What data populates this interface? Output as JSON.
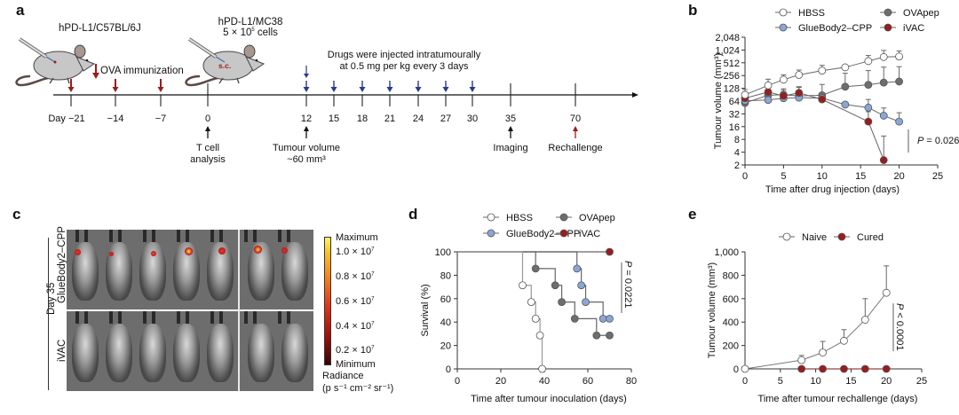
{
  "panel_labels": {
    "a": "a",
    "b": "b",
    "c": "c",
    "d": "d",
    "e": "e"
  },
  "panel_a": {
    "mouse1_label": "hPD-L1/C57BL/6J",
    "mouse2_label_line1": "hPD-L1/MC38",
    "mouse2_label_line2": "5 × 10",
    "mouse2_label_sup": "5",
    "mouse2_label_line2_tail": " cells",
    "sc_label": "s.c.",
    "ova_label": "OVA immunization",
    "drug_note_line1": "Drugs were injected intratumourally",
    "drug_note_line2": "at 0.5 mg per kg every 3 days",
    "ticks": [
      {
        "day": -21,
        "label": "Day −21",
        "arrow": "red-down"
      },
      {
        "day": -14,
        "label": "−14",
        "arrow": "red-down"
      },
      {
        "day": -7,
        "label": "−7",
        "arrow": "red-down"
      },
      {
        "day": 0,
        "label": "0",
        "arrow": "none"
      },
      {
        "day": 12,
        "label": "12",
        "arrow": "blue-down"
      },
      {
        "day": 15,
        "label": "15",
        "arrow": "blue-down"
      },
      {
        "day": 18,
        "label": "18",
        "arrow": "blue-down"
      },
      {
        "day": 21,
        "label": "21",
        "arrow": "blue-down"
      },
      {
        "day": 24,
        "label": "24",
        "arrow": "blue-down"
      },
      {
        "day": 27,
        "label": "27",
        "arrow": "blue-down"
      },
      {
        "day": 30,
        "label": "30",
        "arrow": "blue-down"
      },
      {
        "day": 35,
        "label": "35",
        "arrow": "none"
      },
      {
        "day": 70,
        "label": "70",
        "arrow": "none"
      }
    ],
    "below_annotations": [
      {
        "day": 0,
        "line1": "T cell",
        "line2": "analysis",
        "color": "#111111"
      },
      {
        "day": 12,
        "line1": "Tumour volume",
        "line2": "~60 mm³",
        "color": "#111111"
      },
      {
        "day": 35,
        "line1": "Imaging",
        "line2": "",
        "color": "#111111"
      },
      {
        "day": 70,
        "line1": "Rechallenge",
        "line2": "",
        "color": "#9b1c1c"
      }
    ],
    "colors": {
      "red_arrow": "#9b1c1c",
      "blue_arrow": "#2a3a8c"
    }
  },
  "panel_c": {
    "day_label": "Day 35",
    "row_labels": [
      "GlueBody2–CPP",
      "iVAC"
    ],
    "colorbar": {
      "max_label": "Maximum",
      "min_label": "Minimum",
      "ticks": [
        "1.0 × 10",
        "0.8 × 10",
        "0.6 × 10",
        "0.4 × 10",
        "0.2 × 10"
      ],
      "tick_exp": "7",
      "unit_line1": "Radiance",
      "unit_line2": "(p s⁻¹ cm⁻² sr⁻¹)"
    }
  },
  "chart_data": [
    {
      "id": "b",
      "type": "line",
      "title": "",
      "xlabel": "Time after drug injection (days)",
      "ylabel": "Tumour volume (mm³)",
      "yscale": "log2",
      "xlim": [
        0,
        25
      ],
      "ylim": [
        2,
        2048
      ],
      "xticks": [
        0,
        5,
        10,
        15,
        20,
        25
      ],
      "yticks": [
        2,
        4,
        8,
        16,
        32,
        64,
        128,
        256,
        512,
        1024,
        2048
      ],
      "ytick_labels": [
        "2",
        "4",
        "8",
        "16",
        "32",
        "64",
        "128",
        "256",
        "512",
        "1,024",
        "2,048"
      ],
      "legend": "top",
      "annotation": "P = 0.0261",
      "series": [
        {
          "name": "HBSS",
          "style": "open",
          "color": "#ffffff",
          "x": [
            0,
            3,
            5,
            7,
            10,
            13,
            16,
            18,
            20
          ],
          "y": [
            90,
            150,
            205,
            265,
            335,
            400,
            560,
            700,
            720
          ],
          "err": [
            30,
            60,
            60,
            80,
            110,
            0,
            200,
            300,
            250
          ]
        },
        {
          "name": "OVApep",
          "style": "filled",
          "color": "#6e6e6e",
          "x": [
            0,
            3,
            5,
            7,
            10,
            13,
            16,
            18,
            20
          ],
          "y": [
            58,
            88,
            90,
            85,
            88,
            140,
            155,
            175,
            185
          ],
          "err": [
            20,
            30,
            35,
            50,
            70,
            150,
            180,
            230,
            230
          ]
        },
        {
          "name": "GlueBody2–CPP",
          "style": "filled",
          "color": "#8aa6d6",
          "x": [
            0,
            3,
            5,
            7,
            10,
            13,
            16,
            18,
            20
          ],
          "y": [
            65,
            68,
            75,
            77,
            75,
            53,
            45,
            29,
            21
          ],
          "err": [
            10,
            10,
            15,
            15,
            15,
            0,
            25,
            15,
            13
          ]
        },
        {
          "name": "iVAC",
          "style": "filled",
          "color": "#9b1c1c",
          "x": [
            0,
            3,
            5,
            7,
            10,
            16,
            18
          ],
          "y": [
            75,
            105,
            85,
            100,
            70,
            21,
            2.6
          ],
          "err": [
            15,
            15,
            30,
            40,
            15,
            15,
            7
          ]
        }
      ]
    },
    {
      "id": "d",
      "type": "line",
      "subtype": "step-survival",
      "title": "",
      "xlabel": "Time after tumour inoculation (days)",
      "ylabel": "Survival (%)",
      "xlim": [
        0,
        80
      ],
      "ylim": [
        0,
        100
      ],
      "xticks": [
        0,
        20,
        40,
        60,
        80
      ],
      "yticks": [
        0,
        20,
        40,
        60,
        80,
        100
      ],
      "legend": "top",
      "annotation": "P = 0.0221",
      "series": [
        {
          "name": "HBSS",
          "style": "open",
          "color": "#ffffff",
          "x": [
            0,
            30,
            34,
            36,
            38,
            39
          ],
          "y": [
            100,
            71.4,
            57.1,
            42.9,
            28.6,
            0
          ],
          "markers_x": [
            30,
            34,
            36,
            38,
            39
          ]
        },
        {
          "name": "OVApep",
          "style": "filled",
          "color": "#6e6e6e",
          "x": [
            0,
            36,
            45,
            48,
            54,
            64,
            70
          ],
          "y": [
            100,
            85.7,
            71.4,
            57.1,
            42.9,
            28.6,
            28.6
          ],
          "markers_x": [
            36,
            45,
            48,
            54,
            64,
            70
          ]
        },
        {
          "name": "GlueBody2–CPP",
          "style": "filled",
          "color": "#8aa6d6",
          "x": [
            0,
            55,
            57,
            59,
            67,
            70
          ],
          "y": [
            100,
            85.7,
            71.4,
            57.1,
            42.9,
            42.9
          ],
          "markers_x": [
            55,
            57,
            59,
            67,
            70
          ]
        },
        {
          "name": "iVAC",
          "style": "filled",
          "color": "#9b1c1c",
          "x": [
            0,
            70
          ],
          "y": [
            100,
            100
          ],
          "markers_x": [
            70
          ]
        }
      ]
    },
    {
      "id": "e",
      "type": "line",
      "title": "",
      "xlabel": "Time after tumour rechallenge (days)",
      "ylabel": "Tumour volume (mm³)",
      "xlim": [
        0,
        25
      ],
      "ylim": [
        0,
        1000
      ],
      "xticks": [
        0,
        5,
        10,
        15,
        20,
        25
      ],
      "yticks": [
        0,
        200,
        400,
        600,
        800,
        1000
      ],
      "ytick_labels": [
        "0",
        "200",
        "400",
        "600",
        "800",
        "1,000"
      ],
      "legend": "top",
      "annotation": "P < 0.0001",
      "series": [
        {
          "name": "Naive",
          "style": "open",
          "color": "#ffffff",
          "x": [
            0,
            8,
            11,
            14,
            17,
            20
          ],
          "y": [
            0,
            75,
            140,
            240,
            420,
            650
          ],
          "err": [
            0,
            40,
            95,
            95,
            180,
            230
          ]
        },
        {
          "name": "Cured",
          "style": "filled",
          "color": "#9b1c1c",
          "x": [
            8,
            11,
            14,
            17,
            20
          ],
          "y": [
            0,
            0,
            0,
            0,
            0
          ],
          "err": [
            0,
            0,
            0,
            0,
            0
          ]
        }
      ]
    }
  ]
}
